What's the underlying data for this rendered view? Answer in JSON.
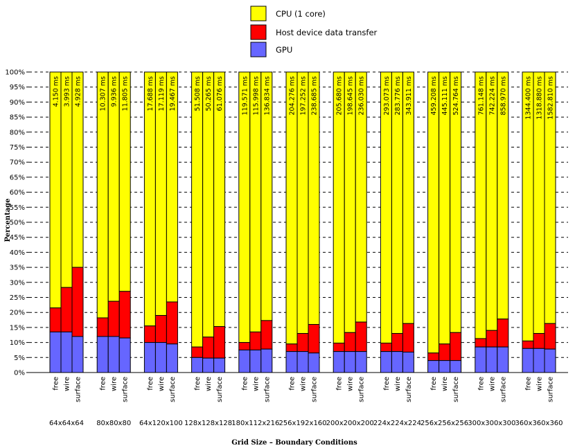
{
  "chart_data": {
    "type": "bar",
    "stacked": true,
    "normalized": true,
    "xlabel": "Grid Size – Boundary Conditions",
    "ylabel": "Percentage",
    "ylim": [
      0,
      100
    ],
    "yticks": [
      "0%",
      "5%",
      "10%",
      "15%",
      "20%",
      "25%",
      "30%",
      "35%",
      "40%",
      "45%",
      "50%",
      "55%",
      "60%",
      "65%",
      "70%",
      "75%",
      "80%",
      "85%",
      "90%",
      "95%",
      "100%"
    ],
    "grid": "horizontal-dashed",
    "conditions": [
      "free",
      "wire",
      "surface"
    ],
    "legend": [
      {
        "name": "CPU (1 core)",
        "color": "#ffff00"
      },
      {
        "name": "Host device data transfer",
        "color": "#ff0000"
      },
      {
        "name": "GPU",
        "color": "#6666ff"
      }
    ],
    "groups": [
      {
        "label": "64x64x64",
        "bars": [
          {
            "gpu": 13.5,
            "transfer": 8.0,
            "time": "4.150 ms"
          },
          {
            "gpu": 13.5,
            "transfer": 14.8,
            "time": "3.993 ms"
          },
          {
            "gpu": 12.0,
            "transfer": 23.0,
            "time": "4.928 ms"
          }
        ]
      },
      {
        "label": "80x80x80",
        "bars": [
          {
            "gpu": 12.0,
            "transfer": 6.2,
            "time": "10.307 ms"
          },
          {
            "gpu": 12.0,
            "transfer": 11.7,
            "time": "9.936 ms"
          },
          {
            "gpu": 11.5,
            "transfer": 15.5,
            "time": "11.805 ms"
          }
        ]
      },
      {
        "label": "64x120x100",
        "bars": [
          {
            "gpu": 10.0,
            "transfer": 5.5,
            "time": "17.688 ms"
          },
          {
            "gpu": 10.0,
            "transfer": 9.0,
            "time": "17.119 ms"
          },
          {
            "gpu": 9.5,
            "transfer": 14.0,
            "time": "19.467 ms"
          }
        ]
      },
      {
        "label": "128x128x128",
        "bars": [
          {
            "gpu": 5.0,
            "transfer": 3.5,
            "time": "51.508 ms"
          },
          {
            "gpu": 4.8,
            "transfer": 7.0,
            "time": "50.265 ms"
          },
          {
            "gpu": 4.8,
            "transfer": 10.5,
            "time": "61.076 ms"
          }
        ]
      },
      {
        "label": "180x112x216",
        "bars": [
          {
            "gpu": 7.5,
            "transfer": 2.5,
            "time": "119.571 ms"
          },
          {
            "gpu": 7.5,
            "transfer": 6.0,
            "time": "115.998 ms"
          },
          {
            "gpu": 7.8,
            "transfer": 9.5,
            "time": "136.834 ms"
          }
        ]
      },
      {
        "label": "256x192x160",
        "bars": [
          {
            "gpu": 7.0,
            "transfer": 2.5,
            "time": "204.276 ms"
          },
          {
            "gpu": 7.0,
            "transfer": 6.0,
            "time": "197.252 ms"
          },
          {
            "gpu": 6.5,
            "transfer": 9.5,
            "time": "238.685 ms"
          }
        ]
      },
      {
        "label": "200x200x200",
        "bars": [
          {
            "gpu": 7.0,
            "transfer": 2.8,
            "time": "205.680 ms"
          },
          {
            "gpu": 7.0,
            "transfer": 6.3,
            "time": "198.645 ms"
          },
          {
            "gpu": 7.0,
            "transfer": 9.8,
            "time": "236.030 ms"
          }
        ]
      },
      {
        "label": "224x224x224",
        "bars": [
          {
            "gpu": 7.0,
            "transfer": 2.8,
            "time": "293.073 ms"
          },
          {
            "gpu": 7.0,
            "transfer": 6.0,
            "time": "283.776 ms"
          },
          {
            "gpu": 6.8,
            "transfer": 9.5,
            "time": "343.911 ms"
          }
        ]
      },
      {
        "label": "256x256x256",
        "bars": [
          {
            "gpu": 4.0,
            "transfer": 2.5,
            "time": "459.208 ms"
          },
          {
            "gpu": 4.0,
            "transfer": 5.5,
            "time": "445.111 ms"
          },
          {
            "gpu": 4.0,
            "transfer": 9.3,
            "time": "524.764 ms"
          }
        ]
      },
      {
        "label": "300x300x300",
        "bars": [
          {
            "gpu": 8.5,
            "transfer": 2.8,
            "time": "761.148 ms"
          },
          {
            "gpu": 8.5,
            "transfer": 5.5,
            "time": "742.224 ms"
          },
          {
            "gpu": 8.5,
            "transfer": 9.3,
            "time": "858.970 ms"
          }
        ]
      },
      {
        "label": "360x360x360",
        "bars": [
          {
            "gpu": 8.0,
            "transfer": 2.5,
            "time": "1344.400 ms"
          },
          {
            "gpu": 8.0,
            "transfer": 5.0,
            "time": "1318.880 ms"
          },
          {
            "gpu": 7.8,
            "transfer": 8.5,
            "time": "1582.810 ms"
          }
        ]
      }
    ]
  }
}
